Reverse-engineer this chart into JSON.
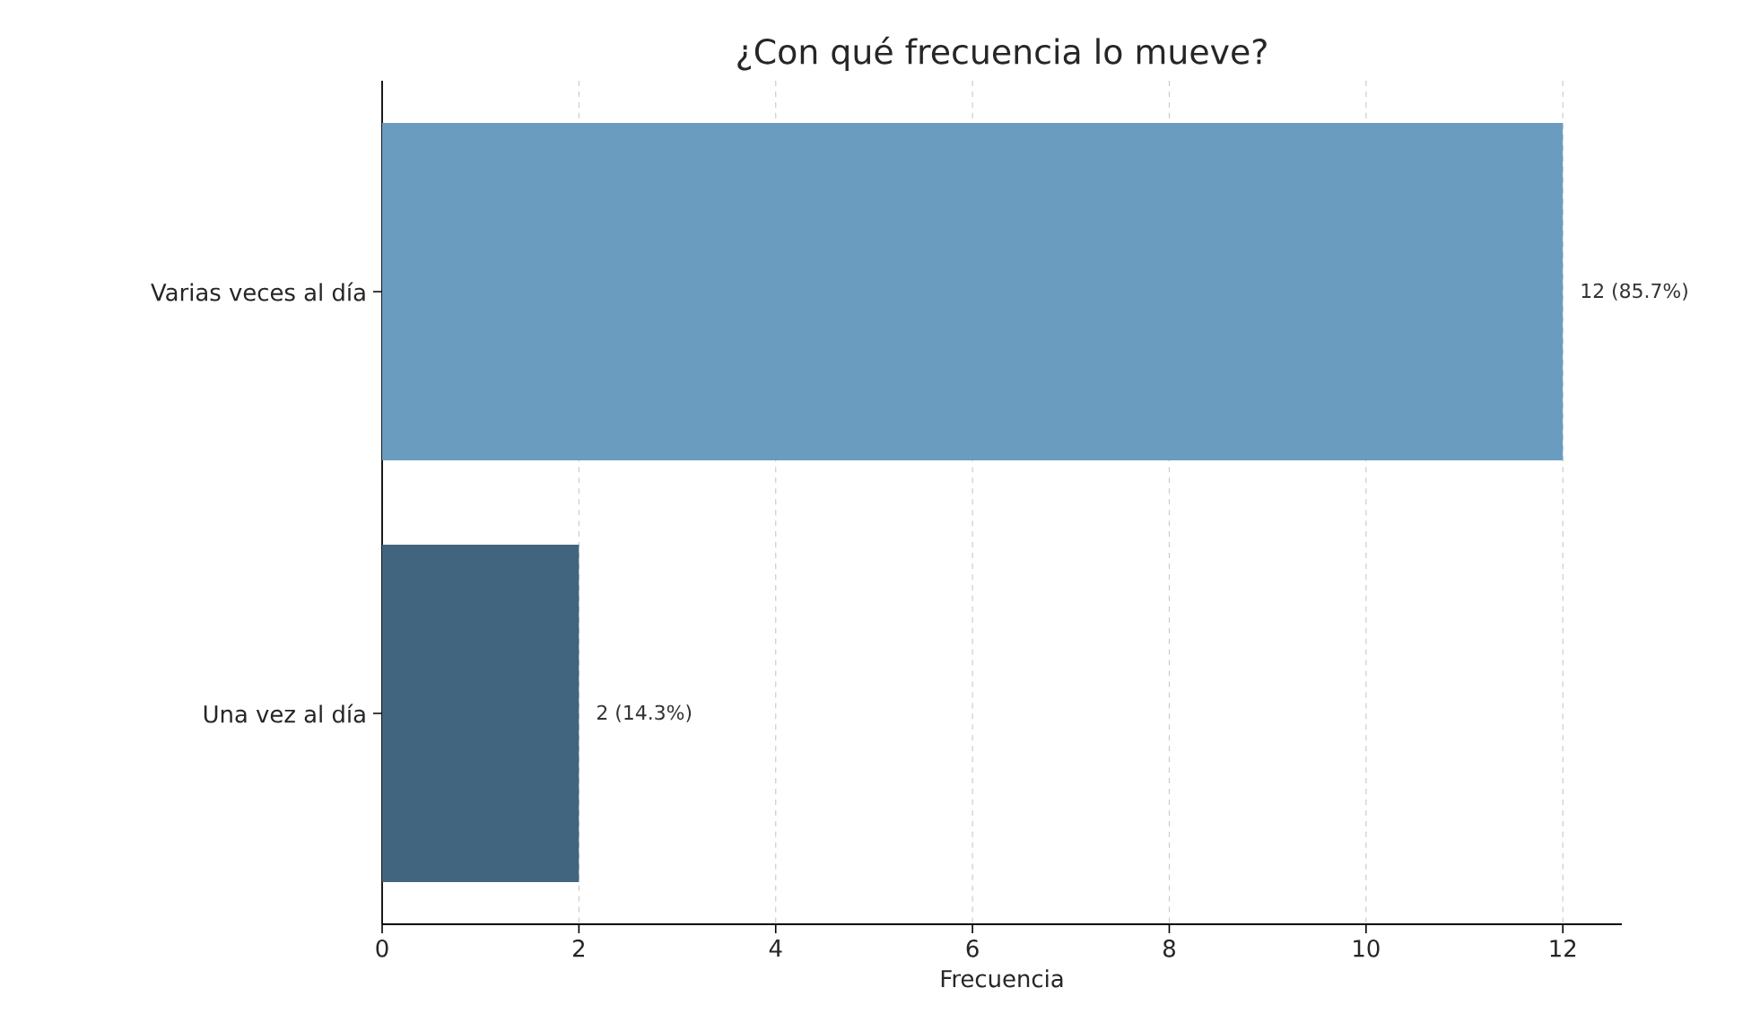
{
  "chart_data": {
    "type": "bar",
    "orientation": "horizontal",
    "title": "¿Con qué frecuencia lo mueve?",
    "xlabel": "Frecuencia",
    "categories": [
      "Varias veces al día",
      "Una vez al día"
    ],
    "values": [
      12,
      2
    ],
    "colors": [
      "#6a9cbf",
      "#41657f"
    ],
    "value_labels": [
      "12 (85.7%)",
      "2 (14.3%)"
    ],
    "xlim": [
      0,
      12.6
    ],
    "xticks": [
      0,
      2,
      4,
      6,
      8,
      10,
      12
    ],
    "grid": "x"
  }
}
